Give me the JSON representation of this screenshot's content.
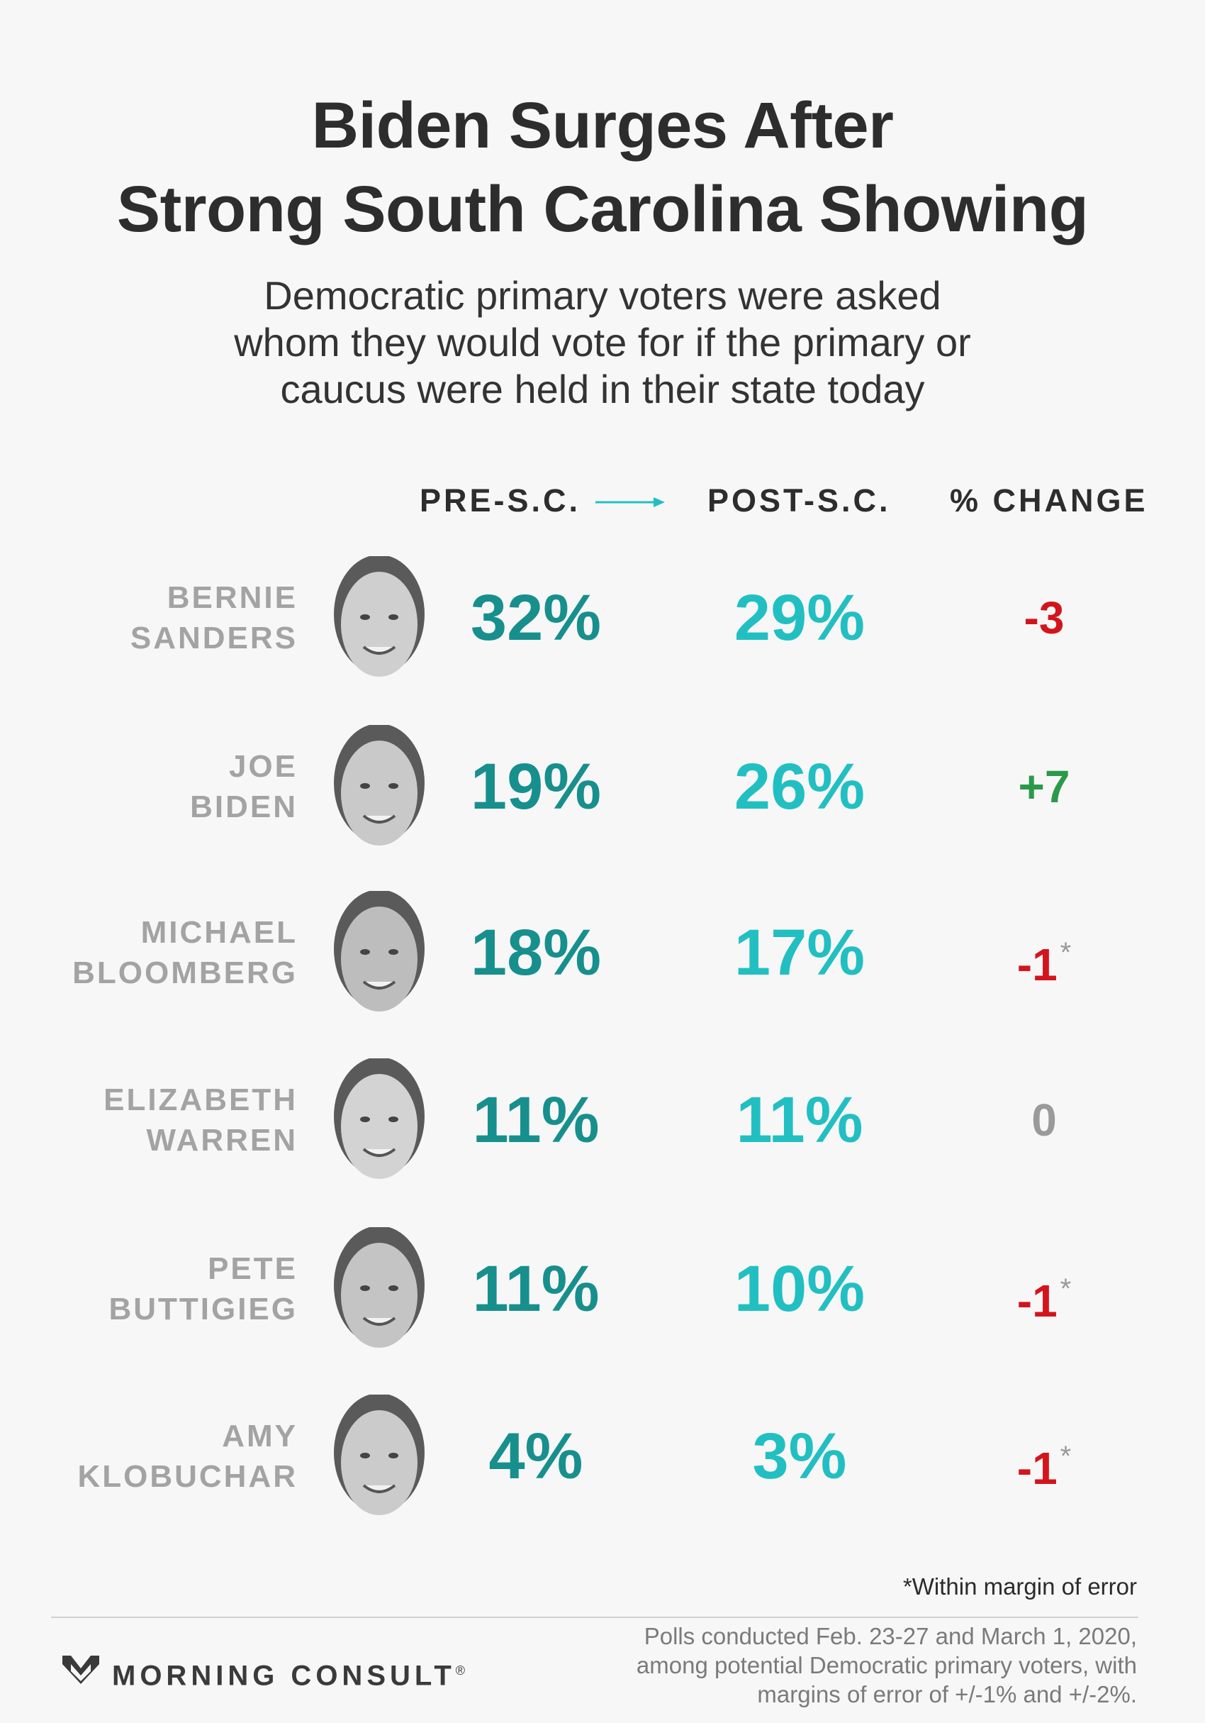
{
  "title_lines": [
    "Biden Surges After",
    "Strong South Carolina Showing"
  ],
  "subtitle_lines": [
    "Democratic primary voters were asked",
    "whom they would vote for if the primary or",
    "caucus were held in their state today"
  ],
  "columns": {
    "pre": "PRE-S.C.",
    "post": "POST-S.C.",
    "change": "% CHANGE"
  },
  "colors": {
    "pre": "#178f8d",
    "post": "#22bfc2",
    "negative": "#d4141c",
    "positive": "#2a9a4a",
    "neutral": "#9a9a9a"
  },
  "rows": [
    {
      "first": "BERNIE",
      "last": "SANDERS",
      "pre": "32%",
      "post": "29%",
      "change": "-3",
      "asterisk": "",
      "direction": "negative"
    },
    {
      "first": "JOE",
      "last": "BIDEN",
      "pre": "19%",
      "post": "26%",
      "change": "+7",
      "asterisk": "",
      "direction": "positive"
    },
    {
      "first": "MICHAEL",
      "last": "BLOOMBERG",
      "pre": "18%",
      "post": "17%",
      "change": "-1",
      "asterisk": "*",
      "direction": "negative"
    },
    {
      "first": "ELIZABETH",
      "last": "WARREN",
      "pre": "11%",
      "post": "11%",
      "change": "0",
      "asterisk": "",
      "direction": "neutral"
    },
    {
      "first": "PETE",
      "last": "BUTTIGIEG",
      "pre": "11%",
      "post": "10%",
      "change": "-1",
      "asterisk": "*",
      "direction": "negative"
    },
    {
      "first": "AMY",
      "last": "KLOBUCHAR",
      "pre": "4%",
      "post": "3%",
      "change": "-1",
      "asterisk": "*",
      "direction": "negative"
    }
  ],
  "chart_data": {
    "type": "table",
    "title": "Biden Surges After Strong South Carolina Showing",
    "columns": [
      "PRE-S.C.",
      "POST-S.C.",
      "% CHANGE"
    ],
    "rows": [
      {
        "name": "BERNIE SANDERS",
        "pre": 32,
        "post": 29,
        "change": -3
      },
      {
        "name": "JOE BIDEN",
        "pre": 19,
        "post": 26,
        "change": 7
      },
      {
        "name": "MICHAEL BLOOMBERG",
        "pre": 18,
        "post": 17,
        "change": -1
      },
      {
        "name": "ELIZABETH WARREN",
        "pre": 11,
        "post": 11,
        "change": 0
      },
      {
        "name": "PETE BUTTIGIEG",
        "pre": 11,
        "post": 10,
        "change": -1
      },
      {
        "name": "AMY KLOBUCHAR",
        "pre": 4,
        "post": 3,
        "change": -1
      }
    ]
  },
  "footnote": "*Within margin of error",
  "brand": "MORNING CONSULT",
  "brand_mark": "®",
  "source_lines": [
    "Polls conducted Feb. 23-27 and March 1, 2020,",
    "among potential Democratic primary voters, with",
    "margins of error of +/-1% and +/-2%."
  ]
}
